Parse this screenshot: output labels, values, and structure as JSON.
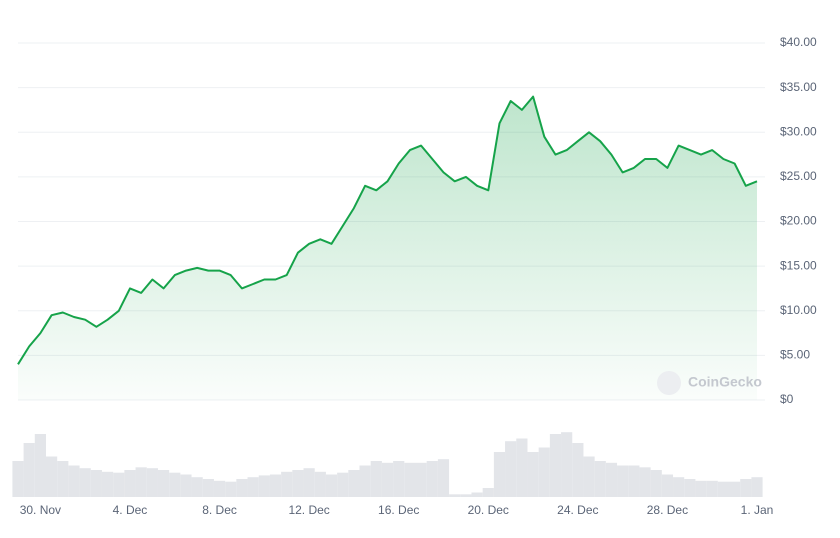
{
  "chart_data": {
    "type": "line",
    "watermark": "CoinGecko",
    "categories": [
      null,
      null,
      "30. Nov",
      null,
      null,
      null,
      null,
      null,
      null,
      null,
      "4. Dec",
      null,
      null,
      null,
      null,
      null,
      null,
      null,
      "8. Dec",
      null,
      null,
      null,
      null,
      null,
      null,
      null,
      "12. Dec",
      null,
      null,
      null,
      null,
      null,
      null,
      null,
      "16. Dec",
      null,
      null,
      null,
      null,
      null,
      null,
      null,
      "20. Dec",
      null,
      null,
      null,
      null,
      null,
      null,
      null,
      "24. Dec",
      null,
      null,
      null,
      null,
      null,
      null,
      null,
      "28. Dec",
      null,
      null,
      null,
      null,
      null,
      null,
      null,
      "1. Jan"
    ],
    "series": [
      {
        "color": "#16a34a",
        "values": [
          4,
          6,
          7.5,
          9.5,
          9.8,
          9.3,
          9,
          8.2,
          9,
          10,
          12.5,
          12,
          13.5,
          12.5,
          14,
          14.5,
          14.8,
          14.5,
          14.5,
          14,
          12.5,
          13,
          13.5,
          13.5,
          14,
          16.5,
          17.5,
          18,
          17.5,
          19.5,
          21.5,
          24,
          23.5,
          24.5,
          26.5,
          28,
          28.5,
          27,
          25.5,
          24.5,
          25,
          24,
          23.5,
          31,
          33.5,
          32.5,
          34,
          29.5,
          27.5,
          28,
          29,
          30,
          29,
          27.5,
          25.5,
          26,
          27,
          27,
          26,
          28.5,
          28,
          27.5,
          28,
          27,
          26.5,
          24,
          24.5
        ]
      }
    ],
    "volumes": {
      "color": "#e3e5e9",
      "values": [
        40,
        60,
        70,
        45,
        40,
        35,
        32,
        30,
        28,
        27,
        30,
        33,
        32,
        30,
        27,
        25,
        22,
        20,
        18,
        17,
        20,
        22,
        24,
        25,
        28,
        30,
        32,
        28,
        25,
        27,
        30,
        35,
        40,
        38,
        40,
        38,
        38,
        40,
        42,
        3,
        3,
        5,
        10,
        50,
        62,
        65,
        50,
        55,
        70,
        72,
        60,
        45,
        40,
        38,
        35,
        35,
        33,
        30,
        25,
        22,
        20,
        18,
        18,
        17,
        17,
        20,
        22
      ]
    },
    "ylim": [
      0,
      40
    ],
    "yticks": [
      {
        "value": 0,
        "label": "$0"
      },
      {
        "value": 5,
        "label": "$5.00"
      },
      {
        "value": 10,
        "label": "$10.00"
      },
      {
        "value": 15,
        "label": "$15.00"
      },
      {
        "value": 20,
        "label": "$20.00"
      },
      {
        "value": 25,
        "label": "$25.00"
      },
      {
        "value": 30,
        "label": "$30.00"
      },
      {
        "value": 35,
        "label": "$35.00"
      },
      {
        "value": 40,
        "label": "$40.00"
      }
    ],
    "grid": true
  }
}
